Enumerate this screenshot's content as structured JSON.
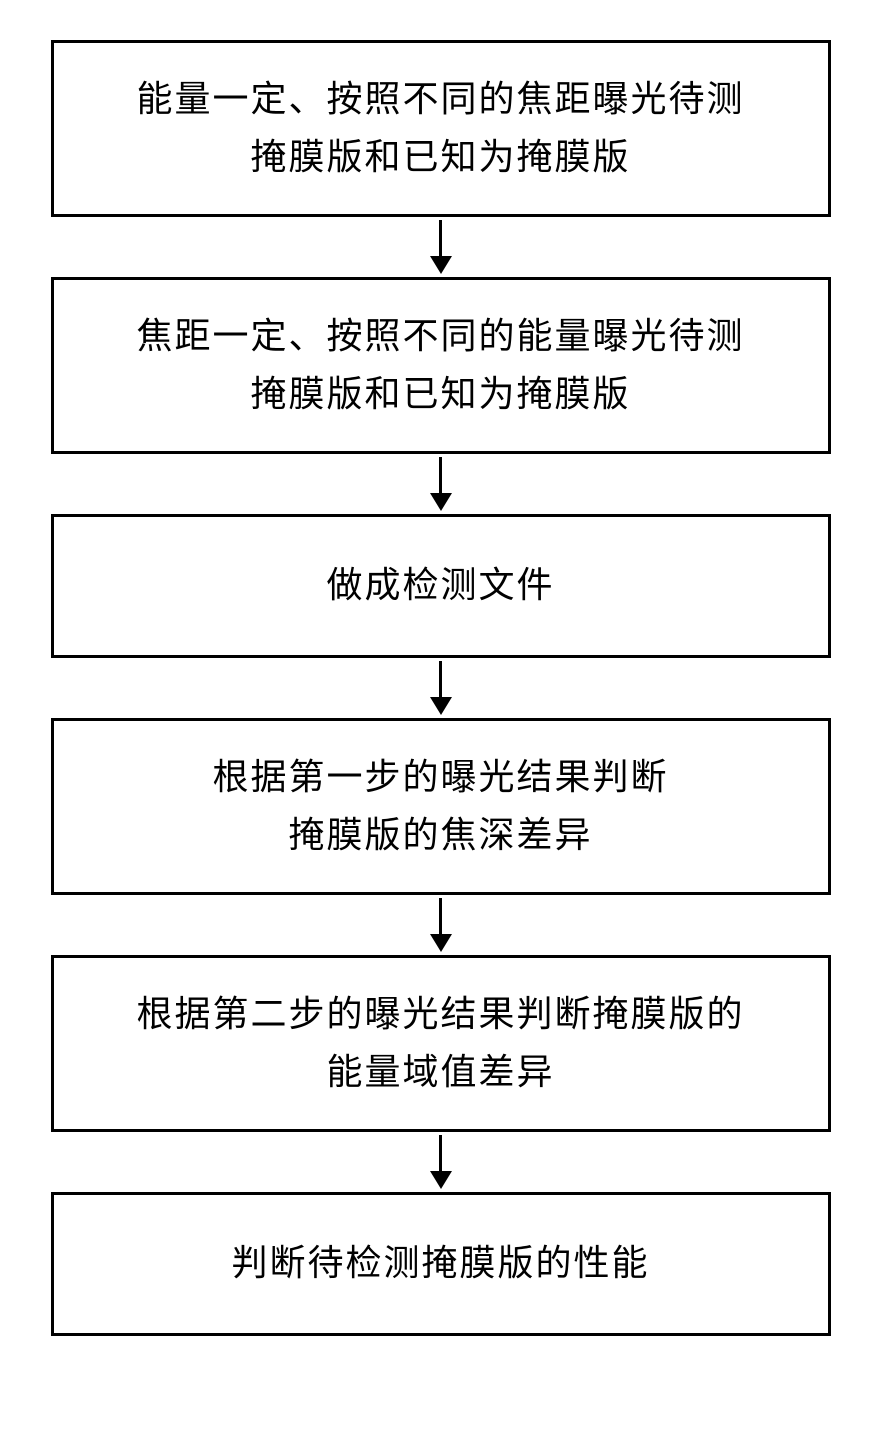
{
  "flowchart": {
    "type": "flowchart",
    "direction": "vertical",
    "background_color": "#ffffff",
    "box_border_color": "#000000",
    "box_border_width": 3,
    "text_color": "#000000",
    "font_size": 36,
    "font_family": "SimSun",
    "arrow_color": "#000000",
    "arrow_line_width": 3,
    "arrow_head_width": 22,
    "arrow_head_height": 18,
    "box_spacing": 60,
    "nodes": [
      {
        "id": "step1",
        "lines": [
          "能量一定、按照不同的焦距曝光待测",
          "掩膜版和已知为掩膜版"
        ]
      },
      {
        "id": "step2",
        "lines": [
          "焦距一定、按照不同的能量曝光待测",
          "掩膜版和已知为掩膜版"
        ]
      },
      {
        "id": "step3",
        "lines": [
          "做成检测文件"
        ]
      },
      {
        "id": "step4",
        "lines": [
          "根据第一步的曝光结果判断",
          "掩膜版的焦深差异"
        ]
      },
      {
        "id": "step5",
        "lines": [
          "根据第二步的曝光结果判断掩膜版的",
          "能量域值差异"
        ]
      },
      {
        "id": "step6",
        "lines": [
          "判断待检测掩膜版的性能"
        ]
      }
    ],
    "edges": [
      {
        "from": "step1",
        "to": "step2"
      },
      {
        "from": "step2",
        "to": "step3"
      },
      {
        "from": "step3",
        "to": "step4"
      },
      {
        "from": "step4",
        "to": "step5"
      },
      {
        "from": "step5",
        "to": "step6"
      }
    ]
  }
}
